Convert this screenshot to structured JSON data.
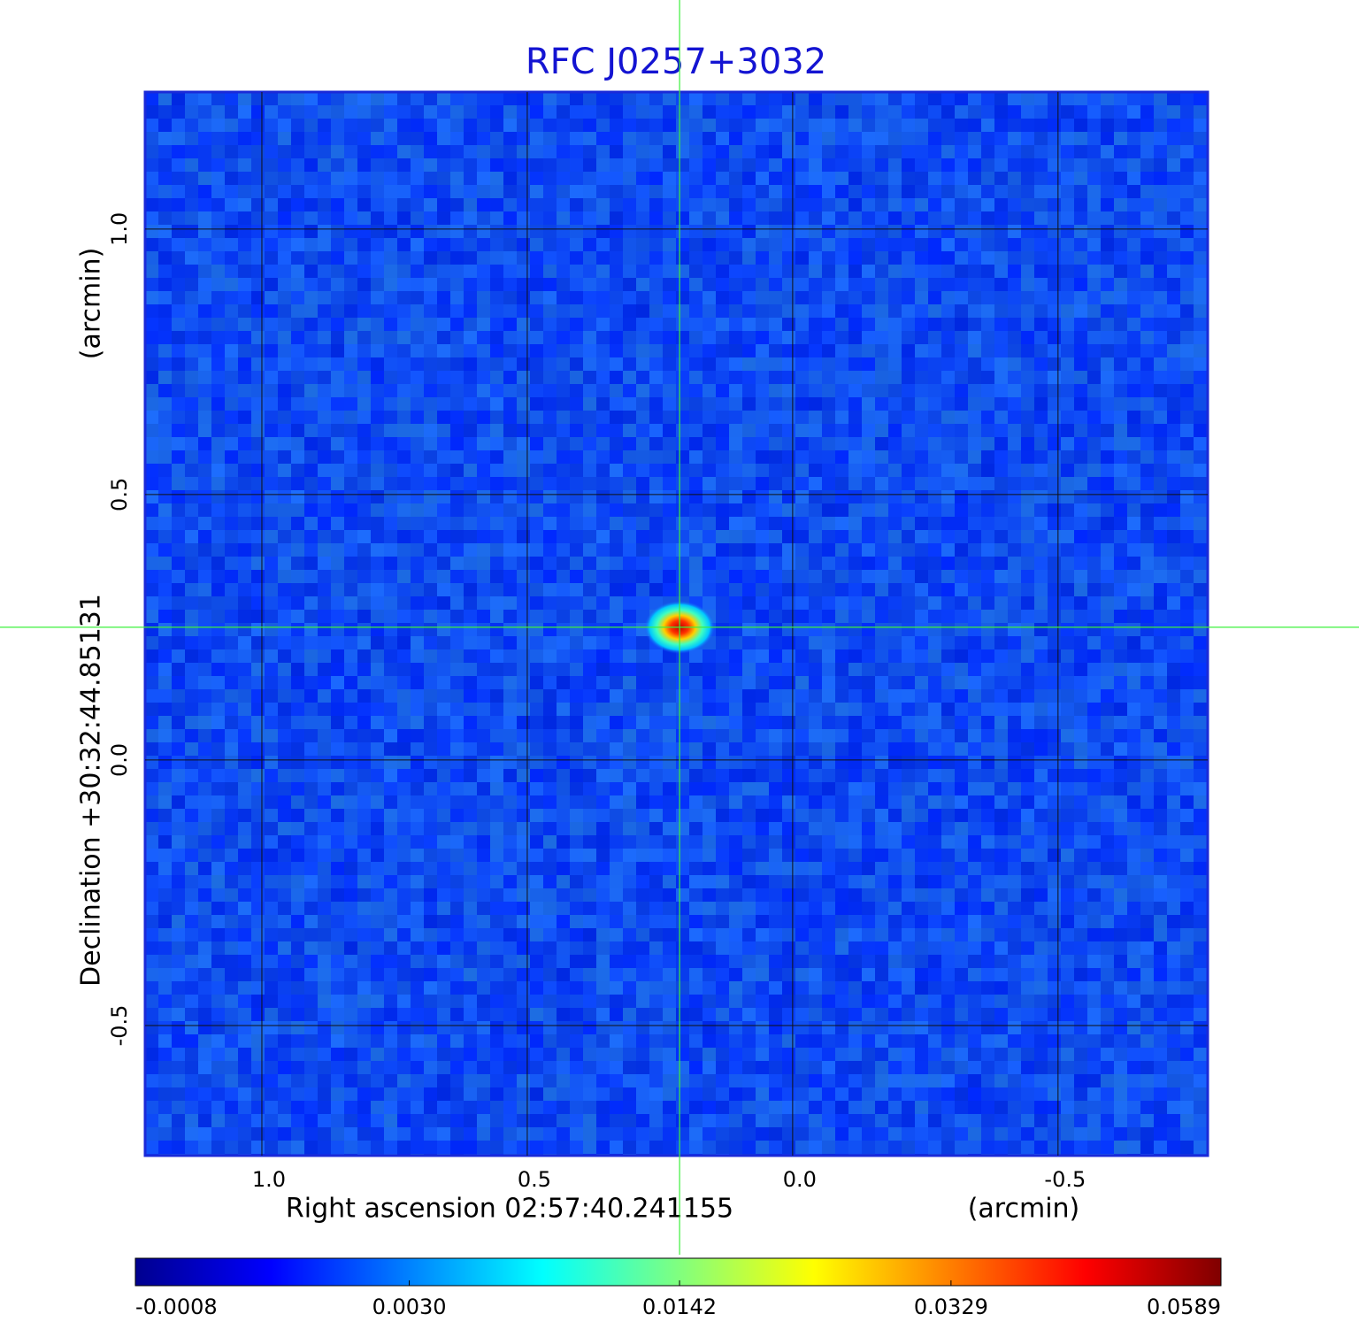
{
  "chart_data": {
    "type": "image",
    "title": "RFC J0257+3032",
    "xlabel": "Right ascension  02:57:40.241155",
    "xunit": "(arcmin)",
    "ylabel": "Declination  +30:32:44.85131",
    "yunit": "(arcmin)",
    "xlim": [
      1.22,
      -0.782
    ],
    "ylim": [
      -0.745,
      1.258
    ],
    "xticks": [
      {
        "value": 1.0,
        "label": "1.0"
      },
      0.5,
      {
        "value": 0.0,
        "label": "0.0"
      },
      -0.5
    ],
    "yticks": [
      {
        "value": 1.0,
        "label": "1.0"
      },
      0.5,
      {
        "value": 0.0,
        "label": "0.0"
      },
      -0.5
    ],
    "grid": true,
    "source": {
      "x": 0.213,
      "y": 0.25
    },
    "colorbar": {
      "colormap": "jet",
      "scale": "sqrt",
      "lim": [
        -0.0008,
        0.0589
      ],
      "ticks": [
        -0.0008,
        {
          "value": 0.003,
          "label": "0.0030"
        },
        0.0142,
        0.0329,
        0.0589
      ]
    }
  }
}
